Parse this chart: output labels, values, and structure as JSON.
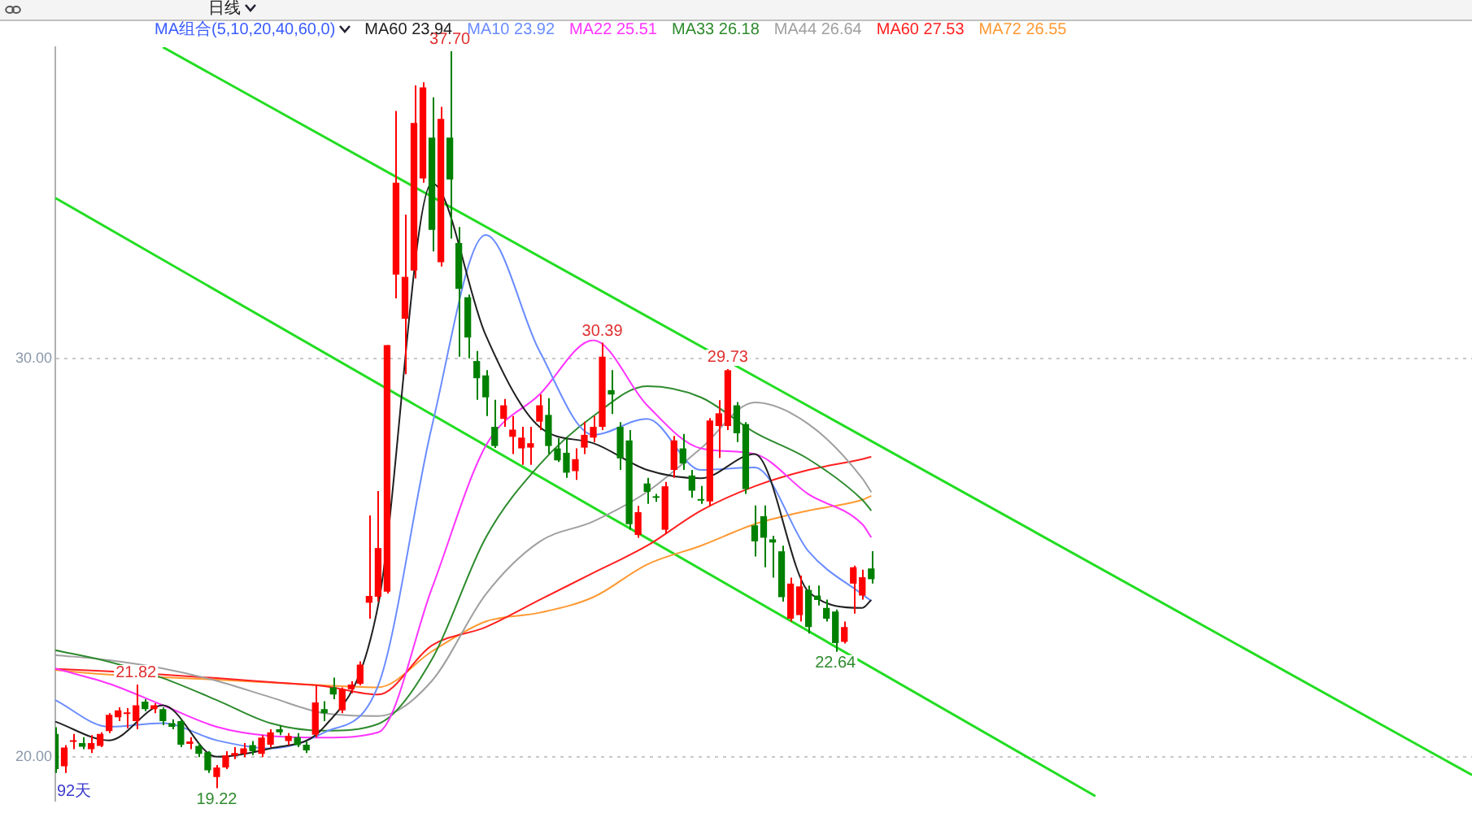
{
  "chart_data": {
    "type": "candlestick",
    "subtitle": "日线",
    "legend_title": "MA组合(5,10,20,40,60,0)",
    "legend": "top left",
    "marker": "none",
    "grid": "y",
    "categories": [
      null,
      null,
      null,
      null,
      null,
      null,
      null,
      null,
      null,
      null,
      null,
      null,
      null,
      null,
      null,
      null,
      null,
      null,
      null,
      null,
      null,
      null,
      null,
      null,
      null,
      null,
      null,
      null,
      null,
      null,
      null,
      null,
      null,
      null,
      null,
      null,
      null,
      null,
      null,
      null,
      null,
      null,
      null,
      null,
      null,
      null,
      null,
      null,
      null,
      null,
      null,
      null,
      null,
      null,
      null,
      null,
      null,
      null,
      null,
      null,
      null,
      null,
      null,
      null,
      null,
      null,
      null,
      null,
      null,
      null,
      null,
      null,
      null,
      null,
      null,
      null,
      null,
      null,
      null,
      null,
      null,
      null,
      null,
      null,
      null,
      null,
      null,
      null,
      null,
      null,
      null,
      null,
      null,
      null,
      null,
      null,
      null,
      null,
      null,
      null,
      null,
      null,
      null,
      null,
      null,
      null,
      null,
      null,
      null,
      null,
      null,
      null,
      null,
      null,
      null,
      null,
      null,
      null,
      null,
      null,
      null,
      null,
      null,
      null,
      null,
      null,
      null,
      null,
      null,
      null,
      null,
      null,
      null,
      null,
      null,
      null,
      null,
      null,
      null,
      null,
      null,
      null,
      null,
      null,
      null,
      null,
      null,
      null,
      null,
      null,
      null,
      null,
      null,
      null,
      null,
      null,
      null,
      null,
      null
    ],
    "ylim": [
      18.9,
      37.8
    ],
    "yticks": [
      {
        "value": 20,
        "label": "20.00"
      },
      {
        "value": 30,
        "label": "30.00"
      }
    ],
    "ohlc": [
      [
        20.58,
        20.75,
        19.6,
        19.7
      ],
      [
        19.77,
        20.3,
        19.6,
        20.24
      ],
      [
        20.38,
        20.58,
        20.2,
        20.42
      ],
      [
        20.35,
        20.5,
        20.2,
        20.26
      ],
      [
        20.2,
        20.55,
        20.1,
        20.35
      ],
      [
        20.28,
        20.62,
        20.25,
        20.58
      ],
      [
        20.65,
        21.1,
        20.6,
        21.06
      ],
      [
        21.0,
        21.25,
        20.9,
        21.17
      ],
      [
        21.08,
        21.23,
        20.72,
        21.12
      ],
      [
        20.9,
        21.82,
        20.7,
        21.3
      ],
      [
        21.39,
        21.45,
        21.15,
        21.2
      ],
      [
        21.2,
        21.35,
        21.1,
        21.3
      ],
      [
        21.2,
        21.25,
        20.8,
        20.9
      ],
      [
        20.85,
        20.95,
        20.7,
        20.76
      ],
      [
        20.9,
        20.95,
        20.25,
        20.31
      ],
      [
        20.33,
        20.5,
        20.2,
        20.39
      ],
      [
        20.28,
        20.35,
        20.0,
        20.08
      ],
      [
        20.12,
        20.15,
        19.6,
        19.67
      ],
      [
        19.5,
        19.8,
        19.22,
        19.74
      ],
      [
        19.74,
        20.15,
        19.7,
        20.04
      ],
      [
        20.04,
        20.25,
        19.95,
        20.1
      ],
      [
        20.08,
        20.35,
        20.0,
        20.22
      ],
      [
        20.3,
        20.4,
        20.05,
        20.15
      ],
      [
        20.08,
        20.55,
        20.0,
        20.49
      ],
      [
        20.31,
        20.7,
        20.25,
        20.62
      ],
      [
        20.7,
        20.8,
        20.55,
        20.62
      ],
      [
        20.4,
        20.6,
        20.3,
        20.53
      ],
      [
        20.5,
        20.6,
        20.25,
        20.3
      ],
      [
        20.31,
        20.4,
        20.1,
        20.17
      ],
      [
        20.56,
        21.8,
        20.5,
        21.37
      ],
      [
        21.2,
        21.4,
        20.9,
        21.1
      ],
      [
        21.75,
        21.99,
        21.45,
        21.57
      ],
      [
        21.17,
        21.75,
        21.1,
        21.7
      ],
      [
        21.7,
        21.9,
        21.6,
        21.82
      ],
      [
        21.84,
        22.4,
        21.8,
        22.32
      ],
      [
        23.87,
        26.06,
        23.47,
        24.04
      ],
      [
        24.02,
        26.67,
        23.9,
        25.24
      ],
      [
        24.15,
        30.33,
        24.1,
        30.33
      ],
      [
        32.1,
        36.2,
        31.5,
        34.4
      ],
      [
        30.99,
        33.6,
        29.6,
        32.04
      ],
      [
        32.2,
        36.84,
        32.0,
        35.9
      ],
      [
        34.51,
        36.92,
        34.4,
        36.79
      ],
      [
        35.53,
        36.54,
        32.68,
        33.22
      ],
      [
        32.41,
        36.3,
        32.3,
        36.0
      ],
      [
        35.53,
        37.7,
        33.0,
        34.48
      ],
      [
        32.89,
        33.29,
        30.04,
        31.74
      ],
      [
        31.53,
        31.6,
        30.0,
        30.52
      ],
      [
        29.93,
        30.18,
        28.96,
        29.5
      ],
      [
        29.57,
        29.7,
        28.55,
        29.02
      ],
      [
        28.28,
        28.96,
        27.75,
        27.8
      ],
      [
        28.48,
        28.98,
        28.28,
        28.82
      ],
      [
        28.03,
        28.55,
        27.6,
        28.21
      ],
      [
        27.74,
        28.28,
        27.33,
        28.01
      ],
      [
        27.76,
        28.28,
        27.33,
        27.87
      ],
      [
        28.41,
        29.09,
        28.2,
        28.82
      ],
      [
        28.58,
        29.0,
        27.6,
        27.8
      ],
      [
        27.74,
        28.0,
        27.4,
        27.44
      ],
      [
        27.63,
        28.0,
        27.0,
        27.13
      ],
      [
        27.17,
        27.74,
        26.95,
        27.47
      ],
      [
        27.76,
        28.41,
        27.6,
        28.08
      ],
      [
        28.01,
        28.55,
        27.9,
        28.28
      ],
      [
        28.28,
        30.39,
        28.2,
        30.04
      ],
      [
        29.2,
        29.7,
        28.6,
        29.09
      ],
      [
        28.28,
        28.4,
        27.2,
        27.49
      ],
      [
        27.94,
        28.2,
        25.7,
        25.84
      ],
      [
        25.57,
        26.3,
        25.5,
        26.14
      ],
      [
        26.86,
        27.0,
        26.35,
        26.65
      ],
      [
        26.51,
        26.6,
        26.4,
        26.5
      ],
      [
        25.7,
        26.9,
        25.6,
        26.79
      ],
      [
        27.2,
        28.05,
        27.0,
        27.94
      ],
      [
        27.74,
        28.1,
        27.2,
        27.36
      ],
      [
        27.06,
        27.2,
        26.5,
        26.68
      ],
      [
        26.47,
        26.8,
        26.35,
        26.43
      ],
      [
        26.41,
        28.5,
        26.3,
        28.44
      ],
      [
        28.3,
        28.95,
        27.5,
        28.62
      ],
      [
        28.3,
        29.73,
        28.2,
        29.7
      ],
      [
        28.82,
        28.9,
        27.9,
        28.12
      ],
      [
        28.35,
        28.4,
        26.6,
        26.72
      ],
      [
        25.81,
        26.31,
        25.03,
        25.41
      ],
      [
        26.04,
        26.31,
        24.76,
        25.5
      ],
      [
        25.46,
        25.55,
        24.5,
        25.38
      ],
      [
        25.16,
        25.3,
        23.9,
        24.01
      ],
      [
        23.47,
        24.5,
        23.4,
        24.35
      ],
      [
        23.56,
        24.55,
        23.4,
        24.28
      ],
      [
        24.19,
        24.3,
        23.1,
        23.26
      ],
      [
        24.05,
        24.3,
        23.8,
        23.94
      ],
      [
        23.74,
        23.95,
        23.4,
        23.47
      ],
      [
        23.65,
        23.7,
        22.64,
        22.86
      ],
      [
        22.89,
        23.4,
        22.85,
        23.26
      ],
      [
        24.35,
        24.8,
        23.6,
        24.76
      ],
      [
        24.05,
        24.7,
        23.95,
        24.51
      ],
      [
        24.73,
        25.16,
        24.35,
        24.46
      ],
      null,
      null,
      null,
      null,
      null,
      null,
      null,
      null,
      null,
      null,
      null,
      null,
      null,
      null,
      null,
      null,
      null,
      null,
      null,
      null,
      null,
      null,
      null,
      null,
      null,
      null,
      null,
      null,
      null,
      null,
      null,
      null,
      null,
      null,
      null,
      null,
      null,
      null,
      null,
      null,
      null,
      null,
      null,
      null,
      null,
      null,
      null,
      null,
      null,
      null,
      null,
      null,
      null,
      null,
      null,
      null,
      null,
      null,
      null,
      null,
      null,
      null,
      null,
      null,
      null,
      null,
      null
    ],
    "series": [
      {
        "type": "line",
        "name": "MA60 23.94",
        "color": "#202020",
        "values": [
          20.89,
          null,
          null,
          null,
          null,
          null,
          20.42,
          null,
          null,
          null,
          null,
          null,
          21.3,
          null,
          null,
          null,
          null,
          null,
          20.01,
          null,
          null,
          null,
          null,
          null,
          20.22,
          null,
          null,
          null,
          null,
          null,
          20.76,
          null,
          null,
          null,
          null,
          null,
          23.8,
          null,
          null,
          null,
          null,
          null,
          34.39,
          null,
          null,
          null,
          null,
          null,
          30.58,
          null,
          null,
          null,
          null,
          null,
          28.28,
          null,
          null,
          null,
          null,
          null,
          27.87,
          null,
          null,
          null,
          null,
          null,
          27.2,
          null,
          null,
          null,
          null,
          null,
          26.99,
          null,
          null,
          null,
          null,
          null,
          27.6,
          null,
          null,
          null,
          null,
          null,
          24.15,
          null,
          null,
          null,
          null,
          null,
          23.74,
          23.94,
          null,
          null,
          null,
          null,
          null,
          null,
          null,
          null,
          null,
          null,
          null,
          null,
          null,
          null,
          null,
          null,
          null,
          null,
          null,
          null,
          null,
          null,
          null,
          null,
          null,
          null,
          null,
          null,
          null,
          null,
          null,
          null,
          null,
          null,
          null,
          null,
          null,
          null,
          null,
          null,
          null,
          null,
          null,
          null,
          null,
          null,
          null,
          null,
          null,
          null,
          null,
          null,
          null,
          null,
          null,
          null,
          null,
          null,
          null,
          null,
          null,
          null,
          null,
          null,
          null,
          null,
          null
        ]
      },
      {
        "type": "line",
        "name": "MA10 23.92",
        "color": "#6a8cff",
        "values": [
          21.43,
          null,
          null,
          null,
          null,
          null,
          20.76,
          null,
          null,
          null,
          null,
          null,
          20.85,
          null,
          null,
          null,
          null,
          null,
          20.42,
          null,
          null,
          null,
          null,
          null,
          20.22,
          null,
          null,
          null,
          null,
          null,
          20.62,
          null,
          null,
          null,
          null,
          null,
          21.79,
          null,
          null,
          null,
          null,
          null,
          28.29,
          null,
          null,
          null,
          null,
          null,
          33.09,
          null,
          null,
          null,
          null,
          null,
          30.18,
          null,
          null,
          null,
          null,
          null,
          28.08,
          null,
          null,
          null,
          null,
          null,
          28.48,
          null,
          null,
          null,
          null,
          null,
          27.2,
          null,
          null,
          null,
          null,
          null,
          27.26,
          null,
          null,
          null,
          null,
          null,
          25.16,
          null,
          null,
          null,
          null,
          null,
          24.08,
          23.92,
          null,
          null,
          null,
          null,
          null,
          null,
          null,
          null,
          null,
          null,
          null,
          null,
          null,
          null,
          null,
          null,
          null,
          null,
          null,
          null,
          null,
          null,
          null,
          null,
          null,
          null,
          null,
          null,
          null,
          null,
          null,
          null,
          null,
          null,
          null,
          null,
          null,
          null,
          null,
          null,
          null,
          null,
          null,
          null,
          null,
          null,
          null,
          null,
          null,
          null,
          null,
          null,
          null,
          null,
          null,
          null,
          null,
          null,
          null,
          null,
          null,
          null,
          null,
          null,
          null,
          null,
          null
        ]
      },
      {
        "type": "line",
        "name": "MA22 25.51",
        "color": "#ff33ff",
        "values": [
          22.22,
          null,
          null,
          null,
          null,
          null,
          21.84,
          null,
          null,
          null,
          null,
          null,
          21.3,
          null,
          null,
          null,
          null,
          null,
          20.76,
          null,
          null,
          null,
          null,
          null,
          20.53,
          null,
          null,
          null,
          null,
          null,
          20.49,
          null,
          null,
          null,
          null,
          null,
          20.62,
          null,
          null,
          null,
          null,
          null,
          24.23,
          null,
          null,
          null,
          null,
          null,
          27.8,
          null,
          null,
          null,
          null,
          null,
          29.09,
          null,
          null,
          null,
          null,
          null,
          30.45,
          null,
          null,
          null,
          null,
          null,
          28.82,
          null,
          null,
          null,
          null,
          null,
          27.74,
          null,
          null,
          null,
          null,
          null,
          27.6,
          null,
          null,
          null,
          null,
          null,
          26.59,
          null,
          null,
          null,
          null,
          null,
          25.84,
          25.51,
          null,
          null,
          null,
          null,
          null,
          null,
          null,
          null,
          null,
          null,
          null,
          null,
          null,
          null,
          null,
          null,
          null,
          null,
          null,
          null,
          null,
          null,
          null,
          null,
          null,
          null,
          null,
          null,
          null,
          null,
          null,
          null,
          null,
          null,
          null,
          null,
          null,
          null,
          null,
          null,
          null,
          null,
          null,
          null,
          null,
          null,
          null,
          null,
          null,
          null,
          null,
          null,
          null,
          null,
          null,
          null,
          null,
          null,
          null,
          null,
          null,
          null,
          null,
          null,
          null,
          null,
          null
        ]
      },
      {
        "type": "line",
        "name": "MA33 26.18",
        "color": "#2e8b2e",
        "values": [
          22.68,
          null,
          null,
          null,
          null,
          null,
          22.39,
          null,
          null,
          null,
          null,
          null,
          21.98,
          null,
          null,
          null,
          null,
          null,
          21.43,
          null,
          null,
          null,
          null,
          null,
          20.85,
          null,
          null,
          null,
          null,
          null,
          20.66,
          null,
          null,
          null,
          null,
          null,
          20.83,
          null,
          null,
          null,
          null,
          null,
          22.45,
          null,
          null,
          null,
          null,
          null,
          25.5,
          null,
          null,
          null,
          null,
          null,
          27.33,
          null,
          null,
          null,
          null,
          null,
          28.55,
          null,
          null,
          null,
          null,
          null,
          29.3,
          null,
          null,
          null,
          null,
          null,
          29.02,
          null,
          null,
          null,
          null,
          null,
          28.14,
          null,
          null,
          null,
          null,
          null,
          27.47,
          null,
          null,
          null,
          null,
          null,
          26.45,
          26.18,
          null,
          null,
          null,
          null,
          null,
          null,
          null,
          null,
          null,
          null,
          null,
          null,
          null,
          null,
          null,
          null,
          null,
          null,
          null,
          null,
          null,
          null,
          null,
          null,
          null,
          null,
          null,
          null,
          null,
          null,
          null,
          null,
          null,
          null,
          null,
          null,
          null,
          null,
          null,
          null,
          null,
          null,
          null,
          null,
          null,
          null,
          null,
          null,
          null,
          null,
          null,
          null,
          null,
          null,
          null,
          null,
          null,
          null,
          null,
          null,
          null,
          null,
          null,
          null,
          null,
          null,
          null
        ]
      },
      {
        "type": "line",
        "name": "MA44 26.64",
        "color": "#a0a0a0",
        "values": [
          22.56,
          null,
          null,
          null,
          null,
          null,
          22.43,
          null,
          null,
          null,
          null,
          null,
          22.22,
          null,
          null,
          null,
          null,
          null,
          21.91,
          null,
          null,
          null,
          null,
          null,
          21.5,
          null,
          null,
          null,
          null,
          null,
          21.1,
          null,
          null,
          null,
          null,
          null,
          21.03,
          null,
          null,
          null,
          null,
          null,
          21.91,
          null,
          null,
          null,
          null,
          null,
          24.08,
          null,
          null,
          null,
          null,
          null,
          25.4,
          null,
          null,
          null,
          null,
          null,
          25.91,
          null,
          null,
          null,
          null,
          null,
          26.65,
          null,
          null,
          null,
          null,
          null,
          27.74,
          null,
          null,
          null,
          null,
          null,
          28.89,
          null,
          null,
          null,
          null,
          null,
          28.35,
          null,
          null,
          null,
          null,
          null,
          26.99,
          26.64,
          null,
          null,
          null,
          null,
          null,
          null,
          null,
          null,
          null,
          null,
          null,
          null,
          null,
          null,
          null,
          null,
          null,
          null,
          null,
          null,
          null,
          null,
          null,
          null,
          null,
          null,
          null,
          null,
          null,
          null,
          null,
          null,
          null,
          null,
          null,
          null,
          null,
          null,
          null,
          null,
          null,
          null,
          null,
          null,
          null,
          null,
          null,
          null,
          null,
          null,
          null,
          null,
          null,
          null,
          null,
          null,
          null,
          null,
          null,
          null,
          null,
          null,
          null,
          null,
          null,
          null,
          null
        ]
      },
      {
        "type": "line",
        "name": "MA60 27.53",
        "color": "#ff2020",
        "values": [
          22.21,
          null,
          null,
          null,
          null,
          null,
          22.15,
          null,
          null,
          null,
          null,
          null,
          22.07,
          null,
          null,
          null,
          null,
          null,
          21.98,
          null,
          null,
          null,
          null,
          null,
          21.88,
          null,
          null,
          null,
          null,
          null,
          21.78,
          null,
          null,
          null,
          null,
          null,
          21.57,
          null,
          null,
          null,
          null,
          null,
          22.8,
          null,
          null,
          null,
          null,
          null,
          23.26,
          null,
          null,
          null,
          null,
          null,
          23.94,
          null,
          null,
          null,
          null,
          null,
          24.62,
          null,
          null,
          null,
          null,
          null,
          25.3,
          null,
          null,
          null,
          null,
          null,
          26.18,
          null,
          null,
          null,
          null,
          null,
          26.79,
          null,
          null,
          null,
          null,
          null,
          27.2,
          null,
          null,
          null,
          null,
          null,
          27.47,
          27.53,
          null,
          null,
          null,
          null,
          null,
          null,
          null,
          null,
          null,
          null,
          null,
          null,
          null,
          null,
          null,
          null,
          null,
          null,
          null,
          null,
          null,
          null,
          null,
          null,
          null,
          null,
          null,
          null,
          null,
          null,
          null,
          null,
          null,
          null,
          null,
          null,
          null,
          null,
          null,
          null,
          null,
          null,
          null,
          null,
          null,
          null,
          null,
          null,
          null,
          null,
          null,
          null,
          null,
          null,
          null,
          null,
          null,
          null,
          null,
          null,
          null,
          null,
          null,
          null,
          null,
          null,
          null
        ]
      },
      {
        "type": "line",
        "name": "MA72 26.55",
        "color": "#ff9933",
        "values": [
          22.18,
          null,
          null,
          null,
          null,
          null,
          22.07,
          null,
          null,
          null,
          null,
          null,
          22.0,
          null,
          null,
          null,
          null,
          null,
          21.94,
          null,
          null,
          null,
          null,
          null,
          21.87,
          null,
          null,
          null,
          null,
          null,
          21.8,
          null,
          null,
          null,
          null,
          null,
          21.75,
          null,
          null,
          null,
          null,
          null,
          22.65,
          null,
          null,
          null,
          null,
          null,
          23.4,
          null,
          null,
          null,
          null,
          null,
          23.62,
          null,
          null,
          null,
          null,
          null,
          24.01,
          null,
          null,
          null,
          null,
          null,
          24.83,
          null,
          null,
          null,
          null,
          null,
          25.3,
          null,
          null,
          null,
          null,
          null,
          25.84,
          null,
          null,
          null,
          null,
          null,
          26.18,
          null,
          null,
          null,
          null,
          null,
          26.45,
          26.55,
          null,
          null,
          null,
          null,
          null,
          null,
          null,
          null,
          null,
          null,
          null,
          null,
          null,
          null,
          null,
          null,
          null,
          null,
          null,
          null,
          null,
          null,
          null,
          null,
          null,
          null,
          null,
          null,
          null,
          null,
          null,
          null,
          null,
          null,
          null,
          null,
          null,
          null,
          null,
          null,
          null,
          null,
          null,
          null,
          null,
          null,
          null,
          null,
          null,
          null,
          null,
          null,
          null,
          null,
          null,
          null,
          null,
          null,
          null,
          null,
          null,
          null,
          null,
          null,
          null,
          null,
          null
        ]
      },
      {
        "type": "line",
        "color": "#22dd22",
        "values": [
          34.02,
          null,
          null,
          null,
          null,
          null,
          null,
          null,
          null,
          null,
          null,
          null,
          null,
          null,
          null,
          null,
          null,
          null,
          null,
          null,
          null,
          null,
          null,
          null,
          null,
          null,
          null,
          null,
          null,
          null,
          null,
          null,
          null,
          null,
          null,
          null,
          null,
          null,
          null,
          null,
          null,
          null,
          null,
          null,
          null,
          null,
          null,
          null,
          null,
          null,
          null,
          null,
          null,
          null,
          null,
          null,
          null,
          null,
          null,
          null,
          null,
          null,
          null,
          null,
          null,
          null,
          null,
          null,
          null,
          null,
          null,
          null,
          null,
          null,
          null,
          null,
          null,
          null,
          null,
          null,
          null,
          null,
          null,
          null,
          null,
          null,
          null,
          null,
          null,
          null,
          null,
          null,
          null,
          null,
          null,
          null,
          null,
          null,
          null,
          null,
          null,
          null,
          null,
          null,
          null,
          null,
          null,
          null,
          null,
          null,
          null,
          null,
          null,
          null,
          null,
          null,
          19.02,
          null,
          null,
          null,
          null,
          null,
          null,
          null,
          null,
          null,
          null,
          null,
          null,
          null,
          null,
          null,
          null,
          null,
          null,
          null,
          null,
          null,
          null,
          null,
          null,
          null,
          null,
          null,
          null,
          null,
          null,
          null,
          null,
          null,
          null,
          null,
          null,
          null,
          null,
          null,
          null,
          null,
          null
        ]
      },
      {
        "type": "line",
        "color": "#22dd22",
        "values": [
          null,
          null,
          null,
          null,
          null,
          null,
          null,
          null,
          null,
          null,
          null,
          null,
          37.8,
          null,
          null,
          null,
          null,
          null,
          null,
          null,
          null,
          null,
          null,
          null,
          null,
          null,
          null,
          null,
          null,
          null,
          null,
          null,
          null,
          null,
          null,
          null,
          null,
          null,
          null,
          null,
          null,
          null,
          null,
          null,
          null,
          null,
          null,
          null,
          null,
          null,
          null,
          null,
          null,
          null,
          null,
          null,
          null,
          null,
          null,
          null,
          null,
          null,
          null,
          null,
          null,
          null,
          null,
          null,
          null,
          null,
          null,
          null,
          null,
          null,
          null,
          null,
          null,
          null,
          null,
          null,
          null,
          null,
          null,
          null,
          null,
          null,
          null,
          null,
          null,
          null,
          null,
          null,
          null,
          null,
          null,
          null,
          null,
          null,
          null,
          null,
          null,
          null,
          null,
          null,
          null,
          null,
          null,
          null,
          null,
          null,
          null,
          null,
          null,
          null,
          null,
          null,
          null,
          null,
          null,
          null,
          null,
          null,
          null,
          null,
          null,
          null,
          null,
          null,
          null,
          null,
          null,
          null,
          null,
          null,
          null,
          null,
          null,
          null,
          null,
          null,
          null,
          null,
          null,
          null,
          null,
          null,
          null,
          null,
          null,
          null,
          null,
          null,
          null,
          null,
          null,
          null,
          null,
          null,
          19.55
        ]
      }
    ],
    "annotations": [
      {
        "text": "37.70",
        "y": 37.7
      },
      {
        "text": "30.39",
        "y": 30.39
      },
      {
        "text": "29.73",
        "y": 29.73
      },
      {
        "text": "21.82",
        "y": 21.82
      },
      {
        "text": "19.22",
        "y": 19.22
      },
      {
        "text": "22.64",
        "y": 22.64
      },
      "92天"
    ]
  }
}
